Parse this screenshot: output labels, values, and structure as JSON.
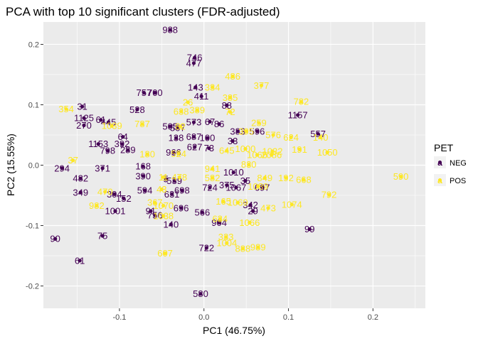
{
  "chart_data": {
    "type": "scatter",
    "title": "PCA with top 10 significant clusters (FDR-adjusted)",
    "xlabel": "PC1 (46.75%)",
    "ylabel": "PC2 (15.55%)",
    "xlim": [
      -0.19,
      0.262
    ],
    "ylim": [
      -0.237,
      0.237
    ],
    "xticks": [
      -0.1,
      0.0,
      0.1,
      0.2
    ],
    "xtick_labels": [
      "-0.1",
      "0.0",
      "0.1",
      "0.2"
    ],
    "yticks": [
      -0.2,
      -0.1,
      0.0,
      0.1,
      0.2
    ],
    "ytick_labels": [
      "-0.2",
      "-0.1",
      "0.0",
      "0.1",
      "0.2"
    ],
    "grid": true,
    "legend": {
      "title": "PET",
      "position": "right"
    },
    "colors": {
      "NEG": "#440154",
      "POS": "#fde725",
      "panel": "#ebebeb",
      "grid": "#ffffff"
    },
    "series": [
      {
        "name": "NEG",
        "points": [
          {
            "x": -0.04,
            "y": 0.224,
            "label": "988"
          },
          {
            "x": -0.011,
            "y": 0.178,
            "label": "746"
          },
          {
            "x": -0.012,
            "y": 0.169,
            "label": "477"
          },
          {
            "x": -0.071,
            "y": 0.12,
            "label": "757"
          },
          {
            "x": -0.058,
            "y": 0.12,
            "label": "700"
          },
          {
            "x": -0.01,
            "y": 0.129,
            "label": "143"
          },
          {
            "x": -0.003,
            "y": 0.114,
            "label": "411"
          },
          {
            "x": 0.027,
            "y": 0.099,
            "label": "88"
          },
          {
            "x": -0.144,
            "y": 0.097,
            "label": "31"
          },
          {
            "x": -0.079,
            "y": 0.092,
            "label": "528"
          },
          {
            "x": -0.142,
            "y": 0.078,
            "label": "1125"
          },
          {
            "x": -0.142,
            "y": 0.066,
            "label": "270"
          },
          {
            "x": -0.122,
            "y": 0.075,
            "label": "61"
          },
          {
            "x": -0.113,
            "y": 0.071,
            "label": "445"
          },
          {
            "x": 0.111,
            "y": 0.083,
            "label": "1157"
          },
          {
            "x": 0.135,
            "y": 0.052,
            "label": "557"
          },
          {
            "x": -0.04,
            "y": 0.064,
            "label": "505"
          },
          {
            "x": -0.031,
            "y": 0.062,
            "label": "507"
          },
          {
            "x": -0.012,
            "y": 0.071,
            "label": "573"
          },
          {
            "x": 0.007,
            "y": 0.072,
            "label": "67"
          },
          {
            "x": 0.018,
            "y": 0.068,
            "label": "86"
          },
          {
            "x": -0.096,
            "y": 0.047,
            "label": "64"
          },
          {
            "x": 0.04,
            "y": 0.056,
            "label": "383"
          },
          {
            "x": 0.063,
            "y": 0.056,
            "label": "596"
          },
          {
            "x": -0.033,
            "y": 0.045,
            "label": "138"
          },
          {
            "x": -0.012,
            "y": 0.047,
            "label": "687"
          },
          {
            "x": 0.004,
            "y": 0.045,
            "label": "100"
          },
          {
            "x": -0.125,
            "y": 0.035,
            "label": "1153"
          },
          {
            "x": -0.097,
            "y": 0.035,
            "label": "392"
          },
          {
            "x": -0.114,
            "y": 0.024,
            "label": "798"
          },
          {
            "x": -0.09,
            "y": 0.025,
            "label": "289"
          },
          {
            "x": -0.036,
            "y": 0.021,
            "label": "966"
          },
          {
            "x": -0.011,
            "y": 0.03,
            "label": "627"
          },
          {
            "x": 0.006,
            "y": 0.028,
            "label": "73"
          },
          {
            "x": 0.034,
            "y": 0.04,
            "label": "33"
          },
          {
            "x": -0.168,
            "y": -0.005,
            "label": "294"
          },
          {
            "x": -0.12,
            "y": -0.005,
            "label": "371"
          },
          {
            "x": -0.072,
            "y": -0.002,
            "label": "168"
          },
          {
            "x": -0.072,
            "y": -0.018,
            "label": "390"
          },
          {
            "x": 0.035,
            "y": -0.012,
            "label": "1010"
          },
          {
            "x": -0.146,
            "y": -0.022,
            "label": "482"
          },
          {
            "x": -0.045,
            "y": -0.023,
            "label": "5"
          },
          {
            "x": -0.035,
            "y": -0.026,
            "label": "539"
          },
          {
            "x": 0.027,
            "y": -0.033,
            "label": "375"
          },
          {
            "x": 0.049,
            "y": -0.026,
            "label": "35"
          },
          {
            "x": -0.146,
            "y": -0.045,
            "label": "349"
          },
          {
            "x": -0.106,
            "y": -0.048,
            "label": "304"
          },
          {
            "x": -0.095,
            "y": -0.055,
            "label": "152"
          },
          {
            "x": -0.07,
            "y": -0.042,
            "label": "594"
          },
          {
            "x": -0.038,
            "y": -0.048,
            "label": "631"
          },
          {
            "x": -0.026,
            "y": -0.042,
            "label": "698"
          },
          {
            "x": 0.007,
            "y": -0.037,
            "label": "724"
          },
          {
            "x": 0.038,
            "y": -0.037,
            "label": "1067"
          },
          {
            "x": 0.069,
            "y": -0.037,
            "label": "697"
          },
          {
            "x": 0.055,
            "y": -0.066,
            "label": "342"
          },
          {
            "x": 0.058,
            "y": -0.076,
            "label": "29"
          },
          {
            "x": -0.105,
            "y": -0.076,
            "label": "1001"
          },
          {
            "x": -0.063,
            "y": -0.076,
            "label": "91"
          },
          {
            "x": -0.058,
            "y": -0.083,
            "label": "756"
          },
          {
            "x": -0.027,
            "y": -0.071,
            "label": "696"
          },
          {
            "x": -0.002,
            "y": -0.078,
            "label": "566"
          },
          {
            "x": 0.018,
            "y": -0.095,
            "label": "904"
          },
          {
            "x": -0.039,
            "y": -0.098,
            "label": "140"
          },
          {
            "x": 0.125,
            "y": -0.106,
            "label": "99"
          },
          {
            "x": -0.12,
            "y": -0.117,
            "label": "75"
          },
          {
            "x": -0.176,
            "y": -0.122,
            "label": "90"
          },
          {
            "x": 0.003,
            "y": -0.137,
            "label": "722"
          },
          {
            "x": -0.147,
            "y": -0.158,
            "label": "61"
          },
          {
            "x": -0.004,
            "y": -0.213,
            "label": "580"
          }
        ]
      },
      {
        "name": "POS",
        "points": [
          {
            "x": 0.034,
            "y": 0.147,
            "label": "486"
          },
          {
            "x": 0.068,
            "y": 0.132,
            "label": "377"
          },
          {
            "x": 0.01,
            "y": 0.129,
            "label": "334"
          },
          {
            "x": 0.031,
            "y": 0.112,
            "label": "385"
          },
          {
            "x": 0.115,
            "y": 0.105,
            "label": "782"
          },
          {
            "x": -0.019,
            "y": 0.104,
            "label": "26"
          },
          {
            "x": -0.163,
            "y": 0.093,
            "label": "354"
          },
          {
            "x": -0.027,
            "y": 0.089,
            "label": "638"
          },
          {
            "x": -0.008,
            "y": 0.091,
            "label": "389"
          },
          {
            "x": 0.031,
            "y": 0.088,
            "label": "72"
          },
          {
            "x": -0.073,
            "y": 0.068,
            "label": "787"
          },
          {
            "x": -0.109,
            "y": 0.065,
            "label": "1039"
          },
          {
            "x": -0.028,
            "y": 0.064,
            "label": "82"
          },
          {
            "x": 0.065,
            "y": 0.07,
            "label": "259"
          },
          {
            "x": 0.05,
            "y": 0.056,
            "label": "395"
          },
          {
            "x": 0.082,
            "y": 0.05,
            "label": "576"
          },
          {
            "x": 0.103,
            "y": 0.046,
            "label": "624"
          },
          {
            "x": 0.138,
            "y": 0.046,
            "label": "140"
          },
          {
            "x": 0.049,
            "y": 0.027,
            "label": "1000"
          },
          {
            "x": 0.081,
            "y": 0.023,
            "label": "1032"
          },
          {
            "x": -0.067,
            "y": 0.018,
            "label": "180"
          },
          {
            "x": 0.027,
            "y": 0.024,
            "label": "645"
          },
          {
            "x": 0.113,
            "y": 0.026,
            "label": "191"
          },
          {
            "x": 0.146,
            "y": 0.021,
            "label": "1050"
          },
          {
            "x": -0.03,
            "y": 0.019,
            "label": "524"
          },
          {
            "x": 0.063,
            "y": 0.017,
            "label": "1066"
          },
          {
            "x": 0.08,
            "y": 0.017,
            "label": "2086"
          },
          {
            "x": -0.155,
            "y": 0.008,
            "label": "37"
          },
          {
            "x": 0.01,
            "y": -0.006,
            "label": "941"
          },
          {
            "x": 0.053,
            "y": 0.001,
            "label": "830"
          },
          {
            "x": 0.233,
            "y": -0.019,
            "label": "590"
          },
          {
            "x": -0.048,
            "y": -0.02,
            "label": "11"
          },
          {
            "x": -0.029,
            "y": -0.02,
            "label": "478"
          },
          {
            "x": 0.01,
            "y": -0.021,
            "label": "582"
          },
          {
            "x": 0.072,
            "y": -0.021,
            "label": "849"
          },
          {
            "x": 0.097,
            "y": -0.021,
            "label": "192"
          },
          {
            "x": 0.118,
            "y": -0.024,
            "label": "668"
          },
          {
            "x": 0.064,
            "y": -0.035,
            "label": "1089"
          },
          {
            "x": -0.117,
            "y": -0.044,
            "label": "470"
          },
          {
            "x": -0.05,
            "y": -0.04,
            "label": "43"
          },
          {
            "x": 0.148,
            "y": -0.049,
            "label": "792"
          },
          {
            "x": -0.127,
            "y": -0.067,
            "label": "982"
          },
          {
            "x": -0.058,
            "y": -0.062,
            "label": "367"
          },
          {
            "x": -0.048,
            "y": -0.067,
            "label": "1070"
          },
          {
            "x": 0.023,
            "y": -0.06,
            "label": "165"
          },
          {
            "x": 0.04,
            "y": -0.062,
            "label": "1069"
          },
          {
            "x": 0.076,
            "y": -0.071,
            "label": "473"
          },
          {
            "x": 0.104,
            "y": -0.065,
            "label": "1074"
          },
          {
            "x": -0.048,
            "y": -0.084,
            "label": "1038"
          },
          {
            "x": 0.019,
            "y": -0.089,
            "label": "634"
          },
          {
            "x": 0.054,
            "y": -0.095,
            "label": "1066"
          },
          {
            "x": 0.026,
            "y": -0.119,
            "label": "333"
          },
          {
            "x": 0.027,
            "y": -0.129,
            "label": "1004"
          },
          {
            "x": 0.046,
            "y": -0.138,
            "label": "888"
          },
          {
            "x": 0.064,
            "y": -0.136,
            "label": "989"
          },
          {
            "x": -0.046,
            "y": -0.146,
            "label": "607"
          }
        ]
      }
    ]
  }
}
